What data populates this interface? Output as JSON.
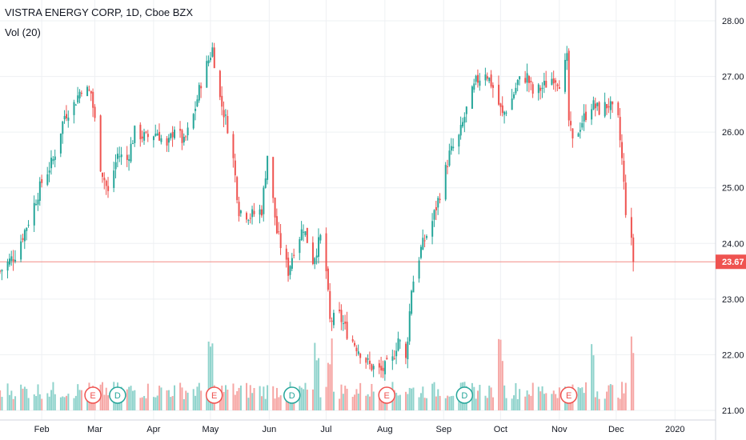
{
  "legend": {
    "title": "VISTRA ENERGY CORP, 1D, Cboe BZX",
    "indicator": "Vol (20)"
  },
  "colors": {
    "up": "#26a69a",
    "down": "#ef5350",
    "vol_up": "#8fd3cc",
    "vol_down": "#f6a6a4",
    "grid": "#eef0f3",
    "price_line": "#f28b86",
    "axis_text": "#131722",
    "event_border": "#ef5350",
    "dividend_border": "#26a69a"
  },
  "current_price": "23.67",
  "events": [
    {
      "label": "E",
      "kind": "earnings",
      "x": "2019-02-28"
    },
    {
      "label": "D",
      "kind": "dividend",
      "x": "2019-03-13"
    },
    {
      "label": "E",
      "kind": "earnings",
      "x": "2019-05-03"
    },
    {
      "label": "D",
      "kind": "dividend",
      "x": "2019-06-13"
    },
    {
      "label": "E",
      "kind": "earnings",
      "x": "2019-08-02"
    },
    {
      "label": "D",
      "kind": "dividend",
      "x": "2019-09-12"
    },
    {
      "label": "E",
      "kind": "earnings",
      "x": "2019-11-06"
    }
  ],
  "chart_data": {
    "type": "candlestick",
    "title": "VISTRA ENERGY CORP, 1D, Cboe BZX",
    "ylim": [
      21.0,
      28.2
    ],
    "xlim": [
      "2019-01-10",
      "2020-01-22"
    ],
    "y_ticks": [
      "28.00",
      "27.00",
      "26.00",
      "25.00",
      "24.00",
      "23.00",
      "22.00",
      "21.00"
    ],
    "x_ticks": [
      {
        "label": "Feb",
        "x": "2019-02-01"
      },
      {
        "label": "Mar",
        "x": "2019-03-01"
      },
      {
        "label": "Apr",
        "x": "2019-04-01"
      },
      {
        "label": "May",
        "x": "2019-05-01"
      },
      {
        "label": "Jun",
        "x": "2019-06-01"
      },
      {
        "label": "Jul",
        "x": "2019-07-01"
      },
      {
        "label": "Aug",
        "x": "2019-08-01"
      },
      {
        "label": "Sep",
        "x": "2019-09-01"
      },
      {
        "label": "Oct",
        "x": "2019-10-01"
      },
      {
        "label": "Nov",
        "x": "2019-11-01"
      },
      {
        "label": "Dec",
        "x": "2019-12-01"
      },
      {
        "label": "2020",
        "x": "2020-01-01"
      }
    ],
    "close_anchors": [
      [
        "2019-01-10",
        23.5
      ],
      [
        "2019-01-18",
        23.8
      ],
      [
        "2019-01-25",
        24.4
      ],
      [
        "2019-02-01",
        25.1
      ],
      [
        "2019-02-07",
        25.5
      ],
      [
        "2019-02-13",
        26.3
      ],
      [
        "2019-02-18",
        26.5
      ],
      [
        "2019-02-22",
        26.8
      ],
      [
        "2019-02-27",
        26.7
      ],
      [
        "2019-03-01",
        26.2
      ],
      [
        "2019-03-04",
        25.4
      ],
      [
        "2019-03-08",
        24.9
      ],
      [
        "2019-03-13",
        25.6
      ],
      [
        "2019-03-18",
        25.5
      ],
      [
        "2019-03-22",
        26.0
      ],
      [
        "2019-03-28",
        25.9
      ],
      [
        "2019-04-03",
        26.0
      ],
      [
        "2019-04-08",
        25.7
      ],
      [
        "2019-04-12",
        26.1
      ],
      [
        "2019-04-17",
        25.8
      ],
      [
        "2019-04-22",
        26.3
      ],
      [
        "2019-04-26",
        26.9
      ],
      [
        "2019-04-30",
        27.3
      ],
      [
        "2019-05-02",
        27.5
      ],
      [
        "2019-05-06",
        26.6
      ],
      [
        "2019-05-10",
        26.1
      ],
      [
        "2019-05-13",
        25.5
      ],
      [
        "2019-05-16",
        24.6
      ],
      [
        "2019-05-22",
        24.5
      ],
      [
        "2019-05-28",
        24.6
      ],
      [
        "2019-05-31",
        25.6
      ],
      [
        "2019-06-05",
        24.2
      ],
      [
        "2019-06-11",
        23.5
      ],
      [
        "2019-06-14",
        23.9
      ],
      [
        "2019-06-19",
        24.3
      ],
      [
        "2019-06-24",
        23.7
      ],
      [
        "2019-06-28",
        24.1
      ],
      [
        "2019-07-01",
        23.5
      ],
      [
        "2019-07-03",
        22.6
      ],
      [
        "2019-07-08",
        22.7
      ],
      [
        "2019-07-12",
        22.4
      ],
      [
        "2019-07-18",
        22.1
      ],
      [
        "2019-07-24",
        21.8
      ],
      [
        "2019-07-30",
        21.7
      ],
      [
        "2019-08-05",
        21.9
      ],
      [
        "2019-08-08",
        22.3
      ],
      [
        "2019-08-12",
        21.9
      ],
      [
        "2019-08-15",
        23.2
      ],
      [
        "2019-08-20",
        23.9
      ],
      [
        "2019-08-26",
        24.4
      ],
      [
        "2019-08-30",
        24.9
      ],
      [
        "2019-09-04",
        25.6
      ],
      [
        "2019-09-09",
        25.9
      ],
      [
        "2019-09-13",
        26.4
      ],
      [
        "2019-09-18",
        26.9
      ],
      [
        "2019-09-23",
        27.1
      ],
      [
        "2019-09-27",
        26.8
      ],
      [
        "2019-10-02",
        26.3
      ],
      [
        "2019-10-07",
        26.6
      ],
      [
        "2019-10-10",
        26.9
      ],
      [
        "2019-10-15",
        27.0
      ],
      [
        "2019-10-18",
        26.7
      ],
      [
        "2019-10-23",
        26.8
      ],
      [
        "2019-10-29",
        27.0
      ],
      [
        "2019-11-01",
        26.9
      ],
      [
        "2019-11-05",
        27.3
      ],
      [
        "2019-11-06",
        26.2
      ],
      [
        "2019-11-08",
        25.8
      ],
      [
        "2019-11-13",
        26.2
      ],
      [
        "2019-11-18",
        26.5
      ],
      [
        "2019-11-22",
        26.4
      ],
      [
        "2019-11-27",
        26.5
      ],
      [
        "2019-12-02",
        26.2
      ],
      [
        "2019-12-04",
        25.5
      ],
      [
        "2019-12-06",
        24.6
      ],
      [
        "2019-12-09",
        24.0
      ],
      [
        "2019-12-10",
        23.67
      ]
    ],
    "volume_profile_note": "Volume bars scaled relative; spikes near 2019-05-01, 2019-06-26, 2019-07-03, 2019-10-01, 2019-11-18, 2019-12-09"
  }
}
